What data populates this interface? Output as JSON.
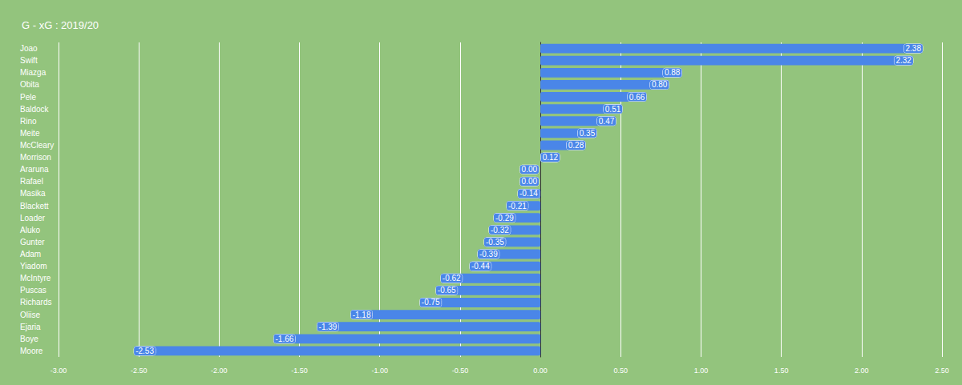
{
  "chart_data": {
    "type": "bar",
    "title": "G - xG : 2019/20",
    "orientation": "horizontal",
    "categories": [
      "Joao",
      "Swift",
      "Miazga",
      "Obita",
      "Pele",
      "Baldock",
      "Rino",
      "Meite",
      "McCleary",
      "Morrison",
      "Araruna",
      "Rafael",
      "Masika",
      "Blackett",
      "Loader",
      "Aluko",
      "Gunter",
      "Adam",
      "Yiadom",
      "McIntyre",
      "Puscas",
      "Richards",
      "Oliise",
      "Ejaria",
      "Boye",
      "Moore"
    ],
    "values": [
      2.38,
      2.32,
      0.88,
      0.8,
      0.66,
      0.51,
      0.47,
      0.35,
      0.28,
      0.12,
      0.0,
      0.0,
      -0.14,
      -0.21,
      -0.29,
      -0.32,
      -0.35,
      -0.39,
      -0.44,
      -0.62,
      -0.65,
      -0.75,
      -1.18,
      -1.39,
      -1.66,
      -2.53
    ],
    "value_labels": [
      "2.38",
      "2.32",
      "0.88",
      "0.80",
      "0.66",
      "0.51",
      "0.47",
      "0.35",
      "0.28",
      "0.12",
      "0.00",
      "0.00",
      "-0.14",
      "-0.21",
      "-0.29",
      "-0.32",
      "-0.35",
      "-0.39",
      "-0.44",
      "-0.62",
      "-0.65",
      "-0.75",
      "-1.18",
      "-1.39",
      "-1.66",
      "-2.53"
    ],
    "color": "#4a86e8",
    "xlim": [
      -3,
      2.5
    ],
    "xticks": [
      {
        "value": -3,
        "label": "-3.00"
      },
      {
        "value": -2.5,
        "label": "-2.50"
      },
      {
        "value": -2,
        "label": "-2.00"
      },
      {
        "value": -1.5,
        "label": "-1.50"
      },
      {
        "value": -1,
        "label": "-1.00"
      },
      {
        "value": -0.5,
        "label": "-0.50"
      },
      {
        "value": 0,
        "label": "0.00"
      },
      {
        "value": 0.5,
        "label": "0.50"
      },
      {
        "value": 1,
        "label": "1.00"
      },
      {
        "value": 1.5,
        "label": "1.50"
      },
      {
        "value": 2,
        "label": "2.00"
      },
      {
        "value": 2.5,
        "label": "2.50"
      }
    ],
    "grid": true,
    "data_labels": true
  }
}
